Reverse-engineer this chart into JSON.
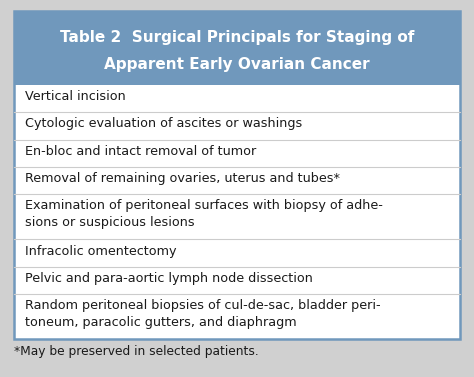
{
  "title_line1": "Table 2  Surgical Principals for Staging of",
  "title_line2": "Apparent Early Ovarian Cancer",
  "header_bg": "#7098bc",
  "header_text_color": "#ffffff",
  "body_bg": "#ffffff",
  "border_color": "#7098bc",
  "body_text_color": "#1a1a1a",
  "footnote_text": "*May be preserved in selected patients.",
  "rows": [
    "Vertical incision",
    "Cytologic evaluation of ascites or washings",
    "En-bloc and intact removal of tumor",
    "Removal of remaining ovaries, uterus and tubes*",
    "Examination of peritoneal surfaces with biopsy of adhe-\nsions or suspicious lesions",
    "Infracolic omentectomy",
    "Pelvic and para-aortic lymph node dissection",
    "Random peritoneal biopsies of cul-de-sac, bladder peri-\ntoneum, paracolic gutters, and diaphragm"
  ],
  "fig_width": 4.74,
  "fig_height": 3.77,
  "dpi": 100,
  "title_fontsize": 11.0,
  "body_fontsize": 9.2,
  "footnote_fontsize": 8.8
}
